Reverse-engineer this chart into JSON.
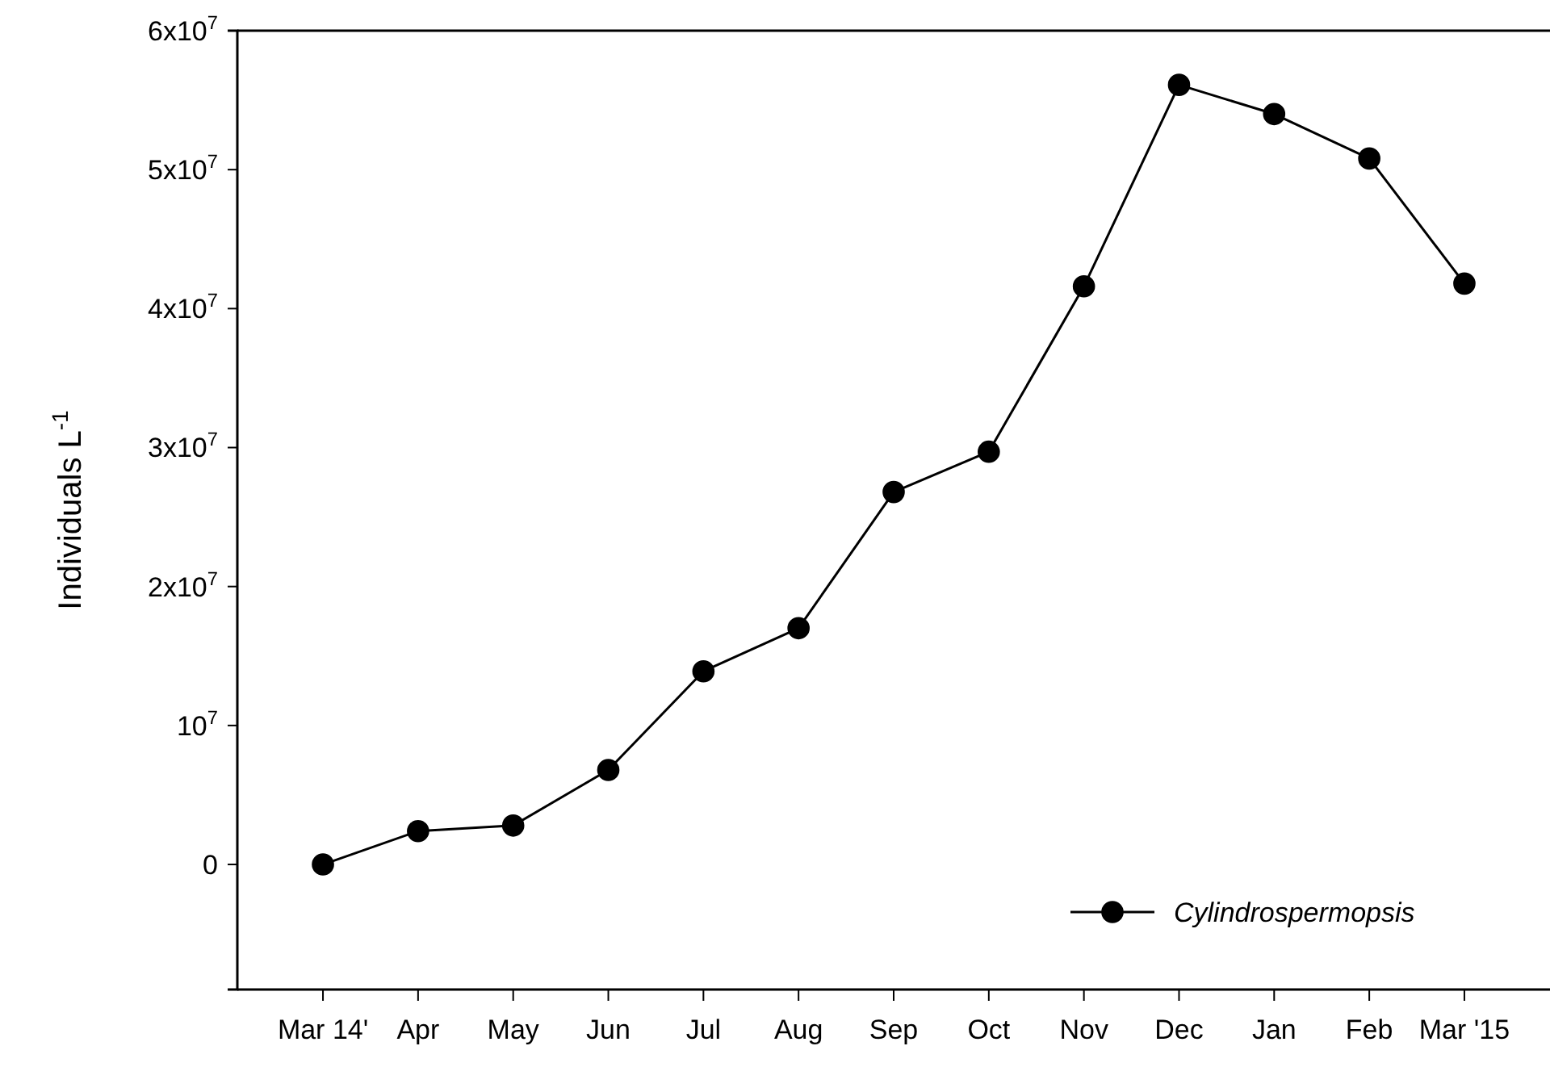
{
  "chart_data": {
    "type": "line",
    "ylabel": "Individuals L$^{-1}$",
    "categories": [
      "Mar 14'",
      "Apr",
      "May",
      "Jun",
      "Jul",
      "Aug",
      "Sep",
      "Oct",
      "Nov",
      "Dec",
      "Jan",
      "Feb",
      "Mar '15"
    ],
    "series": [
      {
        "name": "Cylindrospermopsis",
        "color": "#000000",
        "values": [
          0,
          2400000,
          2800000,
          6800000,
          13900000,
          17000000,
          26800000,
          29700000,
          41600000,
          56100000,
          54000000,
          50800000,
          41800000
        ]
      }
    ],
    "ylim": [
      -9000000,
      60000000
    ],
    "yticks": [
      0,
      {
        "value": 10000000,
        "label": "10$^{7}$"
      },
      {
        "value": 20000000,
        "label": "2x10$^{7}$"
      },
      {
        "value": 30000000,
        "label": "3x10$^{7}$"
      },
      {
        "value": 40000000,
        "label": "4x10$^{7}$"
      },
      {
        "value": 50000000,
        "label": "5x10$^{7}$"
      },
      {
        "value": 60000000,
        "label": "6x10$^{7}$"
      }
    ],
    "marker": "circle",
    "legend": "bottom right",
    "grid": false
  }
}
